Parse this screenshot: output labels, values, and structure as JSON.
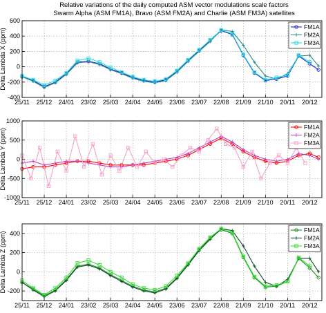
{
  "title": {
    "line1": "Relative variations of the daily computed ASM vector modulations scale factors",
    "line2": "Swarm Alpha (ASM FM1A), Bravo (ASM FM2A) and Charlie (ASM FM3A) satellites"
  },
  "chart_data": [
    {
      "type": "line",
      "ylabel": "Delta Lambda X (ppm)",
      "ylim": [
        -400,
        600
      ],
      "yticks": [
        "-400",
        "-200",
        "0",
        "200",
        "400",
        "600"
      ],
      "categories": [
        "25/11",
        "25/12",
        "24/01",
        "23/02",
        "25/03",
        "24/04",
        "24/05",
        "23/06",
        "23/07",
        "22/08",
        "21/09",
        "21/10",
        "20/11",
        "20/12"
      ],
      "grid": true,
      "legend_position": "top-right",
      "series": [
        {
          "name": "FM1A",
          "color": "#1f1fd0",
          "marker": "o",
          "x": [
            0,
            0.5,
            1,
            1.5,
            2,
            2.5,
            3,
            3.5,
            4,
            4.5,
            5,
            5.5,
            6,
            6.5,
            7,
            7.5,
            8,
            8.5,
            9,
            9.5,
            10,
            10.5,
            11,
            11.5,
            12,
            12.5,
            13,
            13.4
          ],
          "values": [
            -130,
            -180,
            -260,
            -200,
            -90,
            60,
            70,
            40,
            -30,
            -80,
            -140,
            -180,
            -200,
            -170,
            -60,
            80,
            210,
            340,
            470,
            420,
            150,
            -80,
            -180,
            -160,
            -120,
            140,
            40,
            -40
          ]
        },
        {
          "name": "FM2A",
          "color": "#2a8a8a",
          "marker": "+",
          "x": [
            0,
            0.5,
            1,
            1.5,
            2,
            2.5,
            3,
            3.5,
            4,
            4.5,
            5,
            5.5,
            6,
            6.5,
            7,
            7.5,
            8,
            8.5,
            9,
            9.5,
            10,
            10.5,
            11,
            11.5,
            12,
            12.5,
            13,
            13.4
          ],
          "values": [
            -130,
            -190,
            -270,
            -210,
            -100,
            50,
            65,
            30,
            -40,
            -90,
            -150,
            -190,
            -210,
            -180,
            -70,
            70,
            200,
            330,
            480,
            460,
            280,
            60,
            -120,
            -160,
            -90,
            140,
            150,
            10
          ]
        },
        {
          "name": "FM3A",
          "color": "#20e0e0",
          "marker": "s",
          "x": [
            0,
            0.5,
            1,
            1.5,
            2,
            2.5,
            3,
            3.5,
            4,
            4.5,
            5,
            5.5,
            6,
            6.5,
            7,
            7.5,
            8,
            8.5,
            9,
            9.5,
            10,
            10.5,
            11,
            11.5,
            12,
            12.5,
            13
          ],
          "values": [
            -120,
            -170,
            -240,
            -180,
            -80,
            80,
            110,
            60,
            -10,
            -70,
            -130,
            -170,
            -190,
            -160,
            -50,
            90,
            220,
            350,
            480,
            430,
            160,
            -70,
            -170,
            -140,
            -110,
            150,
            60
          ]
        }
      ]
    },
    {
      "type": "line",
      "ylabel": "Delta Lambda Y (ppm)",
      "ylim": [
        -1000,
        1000
      ],
      "yticks": [
        "-1000",
        "-500",
        "0",
        "500",
        "1000"
      ],
      "categories": [
        "25/11",
        "25/12",
        "24/01",
        "23/02",
        "25/03",
        "24/04",
        "24/05",
        "23/06",
        "23/07",
        "22/08",
        "21/09",
        "21/10",
        "20/11",
        "20/12"
      ],
      "grid": true,
      "legend_position": "top-right",
      "series": [
        {
          "name": "FM1A",
          "color": "#ff0000",
          "marker": "o",
          "x": [
            0,
            0.5,
            1,
            1.5,
            2,
            2.5,
            3,
            3.5,
            4,
            4.5,
            5,
            5.5,
            6,
            6.5,
            7,
            7.5,
            8,
            8.5,
            9,
            9.5,
            10,
            10.5,
            11,
            11.5,
            12,
            12.5,
            13,
            13.4
          ],
          "values": [
            -250,
            -200,
            -200,
            -150,
            -100,
            -50,
            -50,
            -100,
            -150,
            -150,
            -150,
            -150,
            -100,
            -50,
            0,
            100,
            250,
            400,
            550,
            400,
            200,
            50,
            -50,
            -100,
            -50,
            100,
            150,
            50
          ]
        },
        {
          "name": "FM2A",
          "color": "#c040c0",
          "marker": "+",
          "x": [
            0,
            0.5,
            1,
            1.5,
            2,
            2.5,
            3,
            3.5,
            4,
            4.5,
            5,
            5.5,
            6,
            6.5,
            7,
            7.5,
            8,
            8.5,
            9,
            9.5,
            10,
            10.5,
            11,
            11.5,
            12,
            12.5,
            13,
            13.4
          ],
          "values": [
            -100,
            -50,
            -150,
            -100,
            -50,
            -50,
            -100,
            -150,
            -200,
            -200,
            -150,
            -100,
            -50,
            0,
            50,
            150,
            300,
            450,
            600,
            450,
            250,
            100,
            0,
            -50,
            0,
            150,
            100,
            0
          ]
        },
        {
          "name": "FM3A",
          "color": "#f5a0c8",
          "marker": "s",
          "x": [
            0,
            0.4,
            0.8,
            1.2,
            1.6,
            2,
            2.4,
            2.8,
            3.2,
            3.6,
            4,
            4.4,
            4.8,
            5.2,
            5.6,
            6,
            6.4,
            6.8,
            7.2,
            7.6,
            8,
            8.4,
            8.8,
            9.2,
            9.6,
            10,
            10.4,
            10.8,
            11.2,
            11.6,
            12,
            12.4,
            12.8
          ],
          "values": [
            100,
            -500,
            300,
            -700,
            200,
            -300,
            600,
            -200,
            400,
            -400,
            100,
            -300,
            300,
            -200,
            200,
            -100,
            0,
            -200,
            100,
            300,
            200,
            500,
            800,
            400,
            300,
            -200,
            200,
            -500,
            -100,
            100,
            -100,
            300,
            -100
          ]
        }
      ]
    },
    {
      "type": "line",
      "ylabel": "Delta Lambda Z (ppm)",
      "ylim": [
        -300,
        500
      ],
      "yticks": [
        "-200",
        "0",
        "200",
        "400"
      ],
      "categories": [
        "25/11",
        "25/12",
        "24/01",
        "23/02",
        "25/03",
        "24/04",
        "24/05",
        "23/06",
        "23/07",
        "22/08",
        "21/09",
        "21/10",
        "20/11",
        "20/12"
      ],
      "grid": true,
      "legend_position": "top-right",
      "series": [
        {
          "name": "FM1A",
          "color": "#208a20",
          "marker": "o",
          "x": [
            0,
            0.5,
            1,
            1.5,
            2,
            2.5,
            3,
            3.5,
            4,
            4.5,
            5,
            5.5,
            6,
            6.5,
            7,
            7.5,
            8,
            8.5,
            9,
            9.5,
            10,
            10.5,
            11,
            11.5,
            12,
            12.5,
            13,
            13.4
          ],
          "values": [
            -110,
            -180,
            -250,
            -190,
            -80,
            60,
            80,
            40,
            -30,
            -90,
            -150,
            -190,
            -210,
            -170,
            -60,
            80,
            230,
            350,
            440,
            400,
            150,
            -60,
            -160,
            -150,
            -100,
            140,
            40,
            -60
          ]
        },
        {
          "name": "FM2A",
          "color": "#0a4a2a",
          "marker": "+",
          "x": [
            0,
            0.5,
            1,
            1.5,
            2,
            2.5,
            3,
            3.5,
            4,
            4.5,
            5,
            5.5,
            6,
            6.5,
            7,
            7.5,
            8,
            8.5,
            9,
            9.5,
            10,
            10.5,
            11,
            11.5,
            12,
            12.5,
            13,
            13.4
          ],
          "values": [
            -110,
            -190,
            -260,
            -200,
            -90,
            50,
            70,
            30,
            -40,
            -100,
            -160,
            -200,
            -220,
            -180,
            -70,
            70,
            220,
            340,
            450,
            430,
            270,
            60,
            -110,
            -150,
            -80,
            140,
            140,
            0
          ]
        },
        {
          "name": "FM3A",
          "color": "#30e030",
          "marker": "s",
          "x": [
            0,
            0.5,
            1,
            1.5,
            2,
            2.5,
            3,
            3.5,
            4,
            4.5,
            5,
            5.5,
            6,
            6.5,
            7,
            7.5,
            8,
            8.5,
            9,
            9.5,
            10,
            10.5,
            11,
            11.5,
            12,
            12.5,
            13
          ],
          "values": [
            -90,
            -170,
            -240,
            -170,
            -60,
            90,
            120,
            70,
            0,
            -60,
            -130,
            -170,
            -190,
            -150,
            -40,
            90,
            240,
            360,
            450,
            410,
            160,
            -50,
            -150,
            -140,
            -100,
            150,
            60
          ]
        }
      ]
    }
  ]
}
